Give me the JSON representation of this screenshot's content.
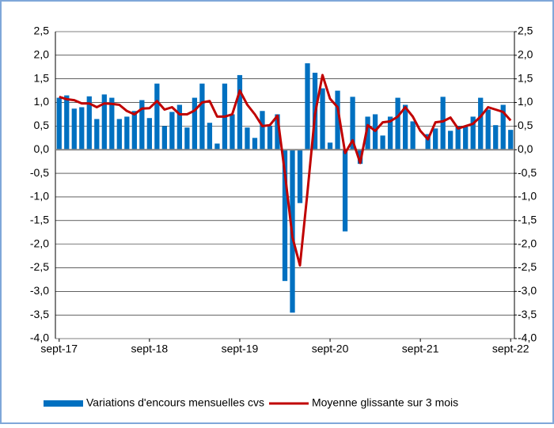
{
  "chart_data": {
    "type": "bar-line",
    "categories": [
      "sept-17",
      null,
      null,
      null,
      null,
      null,
      null,
      null,
      null,
      null,
      null,
      null,
      "sept-18",
      null,
      null,
      null,
      null,
      null,
      null,
      null,
      null,
      null,
      null,
      null,
      "sept-19",
      null,
      null,
      null,
      null,
      null,
      null,
      null,
      null,
      null,
      null,
      null,
      "sept-20",
      null,
      null,
      null,
      null,
      null,
      null,
      null,
      null,
      null,
      null,
      null,
      "sept-21",
      null,
      null,
      null,
      null,
      null,
      null,
      null,
      null,
      null,
      null,
      null,
      "sept-22"
    ],
    "series": [
      {
        "name": "Variations d'encours mensuelles cvs",
        "type": "bar",
        "color": "#0070c0",
        "values": [
          1.1,
          1.15,
          0.87,
          0.9,
          1.13,
          0.65,
          1.17,
          1.1,
          0.65,
          0.7,
          0.82,
          1.05,
          0.67,
          1.4,
          0.5,
          0.8,
          0.95,
          0.47,
          1.1,
          1.4,
          0.57,
          0.13,
          1.4,
          0.75,
          1.58,
          0.47,
          0.25,
          0.82,
          0.5,
          0.75,
          -2.78,
          -3.45,
          -1.13,
          1.83,
          1.63,
          1.3,
          0.15,
          1.25,
          -1.73,
          1.12,
          -0.3,
          0.7,
          0.75,
          0.3,
          0.7,
          1.1,
          0.95,
          0.6,
          0.0,
          0.33,
          0.45,
          1.12,
          0.4,
          0.5,
          0.5,
          0.7,
          1.1,
          0.85,
          0.52,
          0.95,
          0.42
        ]
      },
      {
        "name": "Moyenne glissante sur 3 mois",
        "type": "line",
        "color": "#c00000",
        "values": [
          1.12,
          1.07,
          1.05,
          0.98,
          0.98,
          0.9,
          0.98,
          0.97,
          0.95,
          0.82,
          0.75,
          0.87,
          0.88,
          1.03,
          0.85,
          0.9,
          0.75,
          0.75,
          0.83,
          1.0,
          1.03,
          0.7,
          0.7,
          0.75,
          1.25,
          0.95,
          0.75,
          0.5,
          0.52,
          0.72,
          -0.5,
          -1.85,
          -2.45,
          -0.9,
          0.75,
          1.58,
          1.08,
          0.9,
          -0.07,
          0.2,
          -0.28,
          0.52,
          0.4,
          0.58,
          0.6,
          0.7,
          0.9,
          0.7,
          0.4,
          0.22,
          0.58,
          0.6,
          0.68,
          0.45,
          0.5,
          0.55,
          0.7,
          0.9,
          0.85,
          0.8,
          0.62
        ]
      }
    ],
    "ylim": [
      -4,
      2.5
    ],
    "yticks": [
      {
        "value": -4,
        "label": "-4,0"
      },
      {
        "value": -3.5,
        "label": "-3,5"
      },
      {
        "value": -3,
        "label": "-3,0"
      },
      {
        "value": -2.5,
        "label": "-2,5"
      },
      {
        "value": -2,
        "label": "-2,0"
      },
      {
        "value": -1.5,
        "label": "-1,5"
      },
      {
        "value": -1,
        "label": "-1,0"
      },
      {
        "value": -0.5,
        "label": "-0,5"
      },
      {
        "value": 0,
        "label": "0,0"
      },
      {
        "value": 0.5,
        "label": "0,5"
      },
      {
        "value": 1,
        "label": "1,0"
      },
      {
        "value": 1.5,
        "label": "1,5"
      },
      {
        "value": 2,
        "label": "2,0"
      },
      {
        "value": 2.5,
        "label": "2,5"
      }
    ],
    "y2lim": [
      -4,
      2.5
    ],
    "y2ticks": [
      {
        "value": -4,
        "label": "-4,0"
      },
      {
        "value": -3.5,
        "label": "-3,5"
      },
      {
        "value": -3,
        "label": "-3,0"
      },
      {
        "value": -2.5,
        "label": "-2,5"
      },
      {
        "value": -2,
        "label": "-2,0"
      },
      {
        "value": -1.5,
        "label": "-1,5"
      },
      {
        "value": -1,
        "label": "-1,0"
      },
      {
        "value": -0.5,
        "label": "-0,5"
      },
      {
        "value": 0,
        "label": "0,0"
      },
      {
        "value": 0.5,
        "label": "0,5"
      },
      {
        "value": 1,
        "label": "1,0"
      },
      {
        "value": 1.5,
        "label": "1,5"
      },
      {
        "value": 2,
        "label": "2,0"
      },
      {
        "value": 2.5,
        "label": "2,5"
      }
    ],
    "grid": true
  }
}
